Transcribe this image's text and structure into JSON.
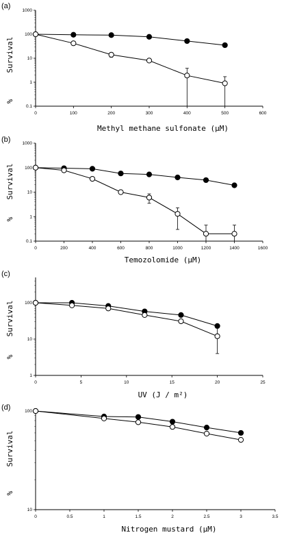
{
  "chart_data": [
    {
      "type": "line",
      "panel": "(a)",
      "xlabel": "Methyl methane sulfonate (μM)",
      "ylabel": "% Survival",
      "yscale": "log",
      "xlim": [
        0,
        600
      ],
      "ylim": [
        0.1,
        1000
      ],
      "xticks": [
        "0",
        "100",
        "200",
        "300",
        "400",
        "500",
        "600"
      ],
      "yticks": [
        "0.1",
        "1",
        "10",
        "100",
        "1000"
      ],
      "series": [
        {
          "marker": "filled",
          "x": [
            0,
            100,
            200,
            300,
            400,
            500
          ],
          "y": [
            100,
            95,
            92,
            78,
            52,
            35
          ],
          "err": [
            0,
            0,
            0,
            0,
            0,
            0
          ]
        },
        {
          "marker": "open",
          "x": [
            0,
            100,
            200,
            300,
            400,
            500
          ],
          "y": [
            100,
            42,
            14,
            8,
            1.9,
            0.9
          ],
          "err": [
            0,
            0,
            3,
            0,
            1.9,
            0.8
          ]
        }
      ]
    },
    {
      "type": "line",
      "panel": "(b)",
      "xlabel": "Temozolomide (μM)",
      "ylabel": "% Survival",
      "yscale": "log",
      "xlim": [
        0,
        1600
      ],
      "ylim": [
        0.1,
        1000
      ],
      "xticks": [
        "0",
        "200",
        "400",
        "600",
        "800",
        "1000",
        "1200",
        "1400",
        "1600"
      ],
      "yticks": [
        "0.1",
        "1",
        "10",
        "100",
        "1000"
      ],
      "series": [
        {
          "marker": "filled",
          "x": [
            0,
            200,
            400,
            600,
            800,
            1000,
            1200,
            1400
          ],
          "y": [
            100,
            95,
            90,
            58,
            53,
            40,
            31,
            19
          ],
          "err": [
            0,
            0,
            0,
            0,
            0,
            0,
            0,
            0
          ]
        },
        {
          "marker": "open",
          "x": [
            0,
            200,
            400,
            600,
            800,
            1000,
            1200,
            1400
          ],
          "y": [
            100,
            78,
            35,
            10,
            6,
            1.3,
            0.2,
            0.2
          ],
          "err": [
            0,
            0,
            0,
            0,
            2.5,
            1,
            0.25,
            0.25
          ]
        }
      ]
    },
    {
      "type": "line",
      "panel": "(c)",
      "xlabel": "UV (J / m²)",
      "ylabel": "% Survival",
      "yscale": "log",
      "xlim": [
        0,
        25
      ],
      "ylim": [
        1,
        500
      ],
      "xticks": [
        "0",
        "5",
        "10",
        "15",
        "20",
        "25"
      ],
      "yticks": [
        "1",
        "10",
        "100"
      ],
      "series": [
        {
          "marker": "filled",
          "x": [
            0,
            4,
            8,
            12,
            16,
            20
          ],
          "y": [
            100,
            100,
            82,
            58,
            46,
            23
          ],
          "err": [
            0,
            0,
            0,
            0,
            0,
            0
          ]
        },
        {
          "marker": "open",
          "x": [
            0,
            4,
            8,
            12,
            16,
            20
          ],
          "y": [
            100,
            85,
            70,
            46,
            31,
            12
          ],
          "err": [
            0,
            0,
            0,
            0,
            0,
            8
          ]
        }
      ]
    },
    {
      "type": "line",
      "panel": "(d)",
      "xlabel": "Nitrogen mustard (μM)",
      "ylabel": "% Survival",
      "yscale": "log",
      "xlim": [
        0,
        3.5
      ],
      "ylim": [
        10,
        100
      ],
      "xticks": [
        "0",
        "0.5",
        "1",
        "1.5",
        "2",
        "2.5",
        "3",
        "3.5"
      ],
      "yticks": [
        "10",
        "100"
      ],
      "series": [
        {
          "marker": "filled",
          "x": [
            0,
            1,
            1.5,
            2,
            2.5,
            3
          ],
          "y": [
            100,
            88,
            87,
            78,
            68,
            60
          ],
          "err": [
            0,
            0,
            0,
            0,
            0,
            0
          ]
        },
        {
          "marker": "open",
          "x": [
            0,
            1,
            1.5,
            2,
            2.5,
            3
          ],
          "y": [
            100,
            84,
            77,
            69,
            59,
            51
          ],
          "err": [
            0,
            0,
            0,
            0,
            0,
            0
          ]
        }
      ]
    }
  ]
}
